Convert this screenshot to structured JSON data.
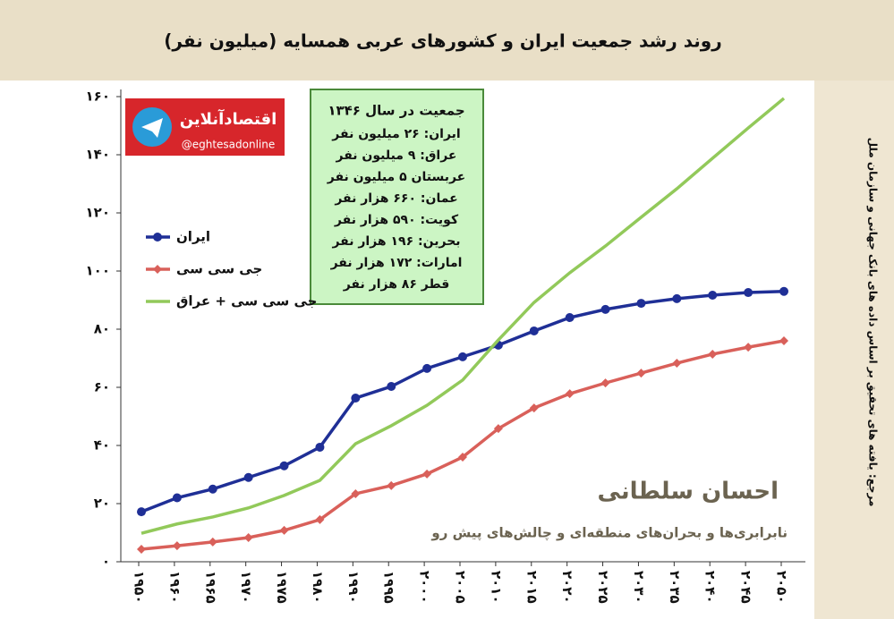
{
  "chart_data": {
    "type": "line",
    "title": "روند رشد جمعیت ایران و کشورهای عربی همسایه (میلیون نفر)",
    "categories": [
      "۱۹۵۰",
      "۱۹۶۰",
      "۱۹۶۵",
      "۱۹۷۰",
      "۱۹۷۵",
      "۱۹۸۰",
      "۱۹۹۰",
      "۱۹۹۵",
      "۲۰۰۰",
      "۲۰۰۵",
      "۲۰۱۰",
      "۲۰۱۵",
      "۲۰۲۰",
      "۲۰۲۵",
      "۲۰۳۰",
      "۲۰۳۵",
      "۲۰۴۰",
      "۲۰۴۵",
      "۲۰۵۰"
    ],
    "series": [
      {
        "name": "ایران",
        "color": "#1f2f96",
        "marker": "circle",
        "values": [
          17.2,
          22,
          25,
          29,
          33,
          39.4,
          56.3,
          60.3,
          66.5,
          70.5,
          74.5,
          79.4,
          84,
          86.8,
          88.9,
          90.5,
          91.7,
          92.6,
          93
        ]
      },
      {
        "name": "جی سی سی",
        "color": "#d9605a",
        "marker": "diamond",
        "values": [
          4.3,
          5.5,
          6.8,
          8.3,
          10.8,
          14.5,
          23.4,
          26.2,
          30.2,
          36,
          45.8,
          52.9,
          57.8,
          61.5,
          64.9,
          68.3,
          71.4,
          73.8,
          76
        ]
      },
      {
        "name": "جی سی سی + عراق",
        "color": "#92c95a",
        "marker": "none",
        "values": [
          9.8,
          13,
          15.4,
          18.5,
          22.8,
          28,
          40.6,
          46.8,
          53.8,
          62.5,
          76.3,
          89.2,
          99.4,
          108.6,
          118.5,
          128.3,
          138.8,
          149.2,
          159.4
        ]
      }
    ],
    "ylim": [
      0,
      160
    ],
    "yticks": [
      {
        "value": 0,
        "label": "۰"
      },
      {
        "value": 20,
        "label": "۲۰"
      },
      {
        "value": 40,
        "label": "۴۰"
      },
      {
        "value": 60,
        "label": "۶۰"
      },
      {
        "value": 80,
        "label": "۸۰"
      },
      {
        "value": 100,
        "label": "۱۰۰"
      },
      {
        "value": 120,
        "label": "۱۲۰"
      },
      {
        "value": 140,
        "label": "۱۴۰"
      },
      {
        "value": 160,
        "label": "۱۶۰"
      }
    ],
    "legend": "upper-left",
    "grid": false,
    "annotation": {
      "title": "جمعیت در سال ۱۳۴۶",
      "lines": [
        "ایران: ۲۶ میلیون نفر",
        "عراق: ۹ میلیون نفر",
        "عربستان ۵ میلیون نفر",
        "عمان: ۶۶۰ هزار نفر",
        "کویت: ۵۹۰ هزار نفر",
        "بحرین: ۱۹۶ هزار نفر",
        "امارات: ۱۷۲ هزار نفر",
        "قطر ۸۶ هزار نفر"
      ]
    },
    "logo": {
      "name": "اقتصادآنلاین",
      "handle": "@eghtesadonline"
    },
    "watermark": {
      "author": "احسان سلطانی",
      "subtitle": "نابرابری‌ها و بحران‌های منطقه‌ای و چالش‌های پیش رو"
    },
    "source": "مرجع: یافته های تحقیق بر اساس داده های بانک جهانی و سازمان ملل"
  }
}
